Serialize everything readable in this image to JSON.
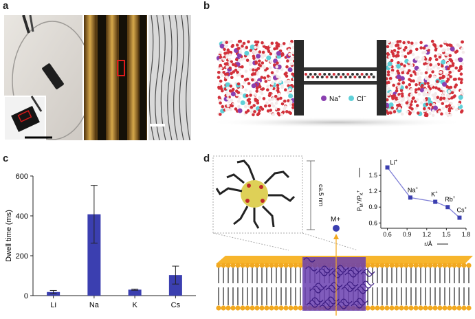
{
  "panels": {
    "a": {
      "label": "a"
    },
    "b": {
      "label": "b",
      "legend": [
        {
          "ion": "Na",
          "charge": "+",
          "color": "#8a3fb0"
        },
        {
          "ion": "Cl",
          "charge": "−",
          "color": "#5fd0d8"
        }
      ]
    },
    "c": {
      "label": "c"
    },
    "d": {
      "label": "d",
      "size_label": "ca.5 nm",
      "ion_label": "M+"
    }
  },
  "colors": {
    "bar": "#3b3fb0",
    "membrane_head": "#f2a920",
    "peptide": "#6a3fb0",
    "water_o": "#d2303a",
    "inset_line": "#3b3fb0",
    "arrow": "#f2a920"
  },
  "chart_data": [
    {
      "type": "bar",
      "categories": [
        "Li",
        "Na",
        "K",
        "Cs"
      ],
      "values": [
        18,
        408,
        30,
        103
      ],
      "errors": [
        8,
        145,
        3,
        45
      ],
      "xlabel": "",
      "ylabel": "Dwell time (ms)",
      "ylim": [
        0,
        600
      ],
      "yticks": [
        0,
        200,
        400,
        600
      ]
    },
    {
      "type": "line",
      "x": [
        0.6,
        0.95,
        1.33,
        1.52,
        1.7
      ],
      "y": [
        1.65,
        1.08,
        1.0,
        0.9,
        0.7
      ],
      "point_labels": [
        {
          "ion": "Li",
          "charge": "+"
        },
        {
          "ion": "Na",
          "charge": "+"
        },
        {
          "ion": "K",
          "charge": "+"
        },
        {
          "ion": "Rb",
          "charge": "+"
        },
        {
          "ion": "Cs",
          "charge": "+"
        }
      ],
      "xlabel": "r/Å",
      "ylabel": {
        "main": "P",
        "sub1": "M",
        "sup1": "+",
        "mid": "/P",
        "sub2": "K",
        "sup2": "+"
      },
      "xlim": [
        0.5,
        1.8
      ],
      "ylim": [
        0.5,
        1.8
      ],
      "xticks": [
        0.6,
        0.9,
        1.2,
        1.5,
        1.8
      ],
      "yticks": [
        0.6,
        0.9,
        1.2,
        1.5,
        1.8
      ]
    }
  ]
}
